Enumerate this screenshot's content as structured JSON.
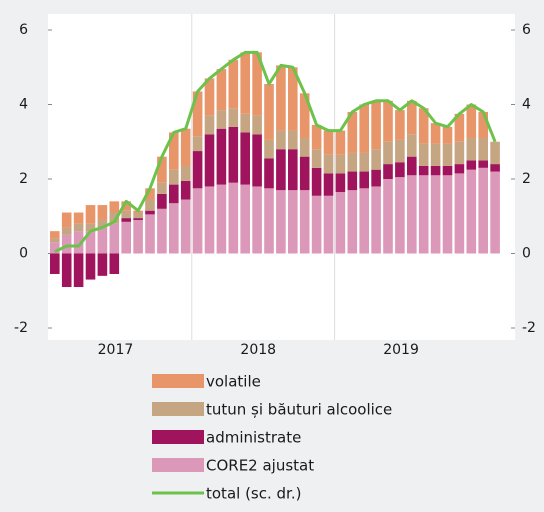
{
  "chart_data": {
    "type": "stacked_bar_line",
    "categories": [
      null,
      null,
      null,
      null,
      null,
      null,
      null,
      null,
      null,
      null,
      null,
      null,
      null,
      null,
      null,
      null,
      null,
      null,
      null,
      null,
      null,
      null,
      null,
      null,
      null,
      null,
      null,
      null,
      null,
      null,
      null,
      null,
      null,
      null,
      null,
      null,
      null,
      null
    ],
    "year_labels": [
      "2017",
      "2018",
      "2019"
    ],
    "series": [
      {
        "name": "volatile",
        "color": "#e8956a",
        "values": [
          0.2,
          0.4,
          0.3,
          0.5,
          0.4,
          0.3,
          0.25,
          0.05,
          0.3,
          0.7,
          1.0,
          1.0,
          1.2,
          1.0,
          1.1,
          1.3,
          1.65,
          1.7,
          1.5,
          1.75,
          1.7,
          1.2,
          0.65,
          0.65,
          0.65,
          1.1,
          1.3,
          1.3,
          1.1,
          0.8,
          0.9,
          0.95,
          0.55,
          0.45,
          0.75,
          0.9,
          0.7,
          0.0
        ]
      },
      {
        "name": "tutun și băuturi alcoolice",
        "color": "#c6a583",
        "values": [
          0.1,
          0.2,
          0.2,
          0.2,
          0.2,
          0.3,
          0.2,
          0.15,
          0.3,
          0.3,
          0.4,
          0.4,
          0.4,
          0.5,
          0.5,
          0.5,
          0.5,
          0.5,
          0.5,
          0.5,
          0.5,
          0.5,
          0.5,
          0.5,
          0.5,
          0.5,
          0.5,
          0.55,
          0.6,
          0.6,
          0.6,
          0.6,
          0.6,
          0.6,
          0.6,
          0.6,
          0.6,
          0.6
        ]
      },
      {
        "name": "administrate",
        "color": "#a0145e",
        "values": [
          -0.55,
          -0.9,
          -0.9,
          -0.7,
          -0.6,
          -0.55,
          0.1,
          0.05,
          0.1,
          0.4,
          0.5,
          0.5,
          1.0,
          1.4,
          1.5,
          1.5,
          1.4,
          1.4,
          0.8,
          1.1,
          1.1,
          0.9,
          0.75,
          0.6,
          0.5,
          0.5,
          0.45,
          0.45,
          0.4,
          0.4,
          0.5,
          0.25,
          0.25,
          0.25,
          0.25,
          0.25,
          0.2,
          0.2
        ]
      },
      {
        "name": "CORE2 ajustat",
        "color": "#dc98b8",
        "values": [
          0.3,
          0.5,
          0.6,
          0.6,
          0.7,
          0.8,
          0.85,
          0.9,
          1.05,
          1.2,
          1.35,
          1.45,
          1.75,
          1.8,
          1.85,
          1.9,
          1.85,
          1.8,
          1.75,
          1.7,
          1.7,
          1.7,
          1.55,
          1.55,
          1.65,
          1.7,
          1.75,
          1.8,
          2.0,
          2.05,
          2.1,
          2.1,
          2.1,
          2.1,
          2.15,
          2.25,
          2.3,
          2.2
        ]
      },
      {
        "name": "total (sc. dr.)",
        "color": "#6cc24a",
        "axis": "y2",
        "values": [
          0.05,
          0.2,
          0.2,
          0.6,
          0.7,
          0.85,
          1.4,
          1.15,
          1.75,
          2.6,
          3.25,
          3.35,
          4.35,
          4.7,
          4.95,
          5.2,
          5.4,
          5.4,
          4.55,
          5.05,
          5.0,
          4.3,
          3.45,
          3.3,
          3.3,
          3.8,
          4.0,
          4.1,
          4.1,
          3.85,
          4.1,
          3.9,
          3.5,
          3.4,
          3.75,
          4.0,
          3.8,
          3.0
        ]
      }
    ],
    "ylim": [
      -2,
      6
    ],
    "yticks": [
      -2,
      0,
      2,
      4,
      6
    ],
    "y2lim": [
      -2,
      6
    ],
    "y2ticks": [
      -2,
      0,
      2,
      4,
      6
    ],
    "grid": false
  }
}
